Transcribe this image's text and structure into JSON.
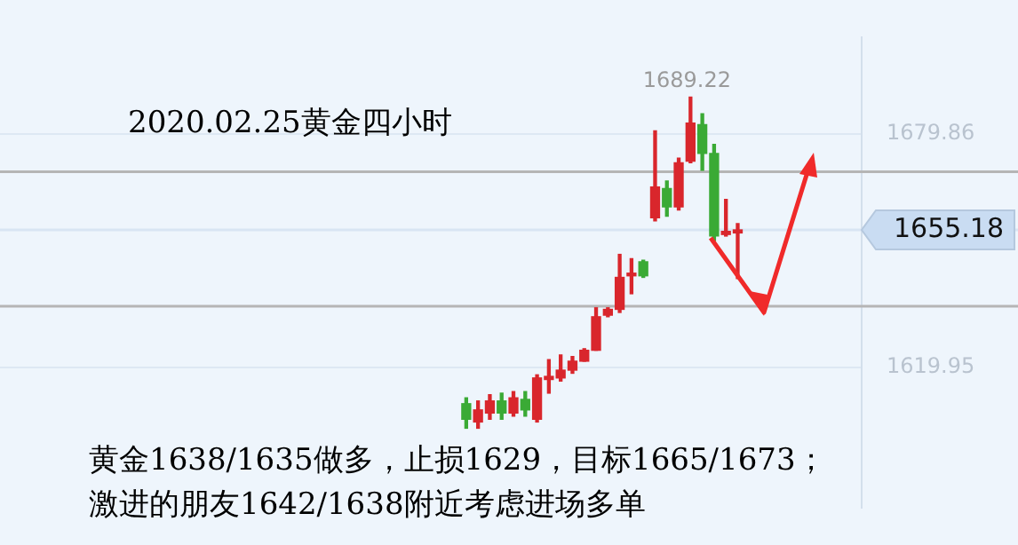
{
  "chart_data": {
    "type": "candlestick",
    "title": "2020.02.25黄金四小时",
    "categories": [
      null,
      null,
      null,
      null,
      null,
      null,
      null,
      null,
      null,
      null,
      null,
      null,
      null,
      null,
      null,
      null,
      null,
      null,
      null,
      null,
      null,
      null,
      null,
      null,
      null,
      null,
      null,
      null,
      null,
      null,
      null,
      null,
      null,
      null,
      null,
      null,
      null,
      null,
      null,
      null,
      null,
      null,
      null,
      null,
      null,
      null,
      null,
      null,
      null,
      null,
      null,
      null,
      null,
      null,
      null,
      null,
      null,
      null,
      null,
      null,
      null,
      null,
      null,
      null,
      null,
      null,
      null,
      null,
      null,
      null,
      null,
      null,
      null
    ],
    "ohlc": [
      null,
      null,
      null,
      null,
      null,
      null,
      null,
      null,
      null,
      null,
      null,
      null,
      null,
      null,
      null,
      null,
      null,
      null,
      null,
      null,
      null,
      null,
      null,
      null,
      null,
      null,
      null,
      null,
      null,
      null,
      null,
      null,
      null,
      null,
      null,
      null,
      null,
      null,
      null,
      [
        1610.6,
        1612.1,
        1604.3,
        1606.6
      ],
      [
        1605.9,
        1611.3,
        1604.3,
        1609.0
      ],
      [
        1608.2,
        1612.9,
        1606.6,
        1611.3
      ],
      [
        1611.3,
        1613.3,
        1606.6,
        1608.2
      ],
      [
        1608.2,
        1613.7,
        1607.4,
        1612.1
      ],
      [
        1611.7,
        1613.7,
        1607.4,
        1609.0
      ],
      [
        1606.6,
        1618.0,
        1605.9,
        1617.2
      ],
      [
        1616.8,
        1621.9,
        1613.3,
        1617.6
      ],
      [
        1617.2,
        1623.1,
        1616.4,
        1619.2
      ],
      [
        1619.2,
        1622.7,
        1618.4,
        1621.5
      ],
      [
        1621.5,
        1624.7,
        1621.5,
        1624.3
      ],
      [
        1624.3,
        1635.2,
        1624.3,
        1632.9
      ],
      [
        1633.3,
        1635.2,
        1632.9,
        1634.8
      ],
      [
        1634.8,
        1648.9,
        1634.0,
        1643.0
      ],
      [
        1643.4,
        1647.8,
        1638.8,
        1643.8
      ],
      [
        1647.0,
        1647.4,
        1643.0,
        1643.4
      ],
      [
        1658.3,
        1680.6,
        1657.5,
        1666.2
      ],
      [
        1665.8,
        1667.7,
        1658.7,
        1661.1
      ],
      [
        1661.1,
        1673.6,
        1660.3,
        1672.4
      ],
      [
        1672.8,
        1689.22,
        1672.4,
        1682.6
      ],
      [
        1682.2,
        1685.0,
        1670.5,
        1674.8
      ],
      [
        1674.8,
        1677.1,
        1652.4,
        1653.6
      ],
      [
        1654.0,
        1663.0,
        1653.6,
        1654.8
      ],
      [
        1654.4,
        1656.8,
        1642.7,
        1655.18
      ],
      null,
      null,
      null,
      null,
      null,
      null,
      null,
      null,
      null,
      null
    ],
    "ylim": [
      1584,
      1704.5
    ],
    "yticks": [
      1679.86,
      1619.95
    ],
    "grid": "y",
    "tick_labels": "y",
    "ref_lines": [
      {
        "axis": "y",
        "value": 1670.1,
        "color": "#b5b5b5"
      },
      {
        "axis": "y",
        "value": 1635.6,
        "color": "#b5b5b5"
      },
      {
        "axis": "y",
        "value": 1655.18,
        "label": "1655.18",
        "color": "#d8e5f3"
      }
    ],
    "annotations": [
      "1689.22",
      "黄金1638/1635做多，止损1629，目标1665/1673；",
      "激进的朋友1642/1638附近考虑进场多单"
    ]
  }
}
